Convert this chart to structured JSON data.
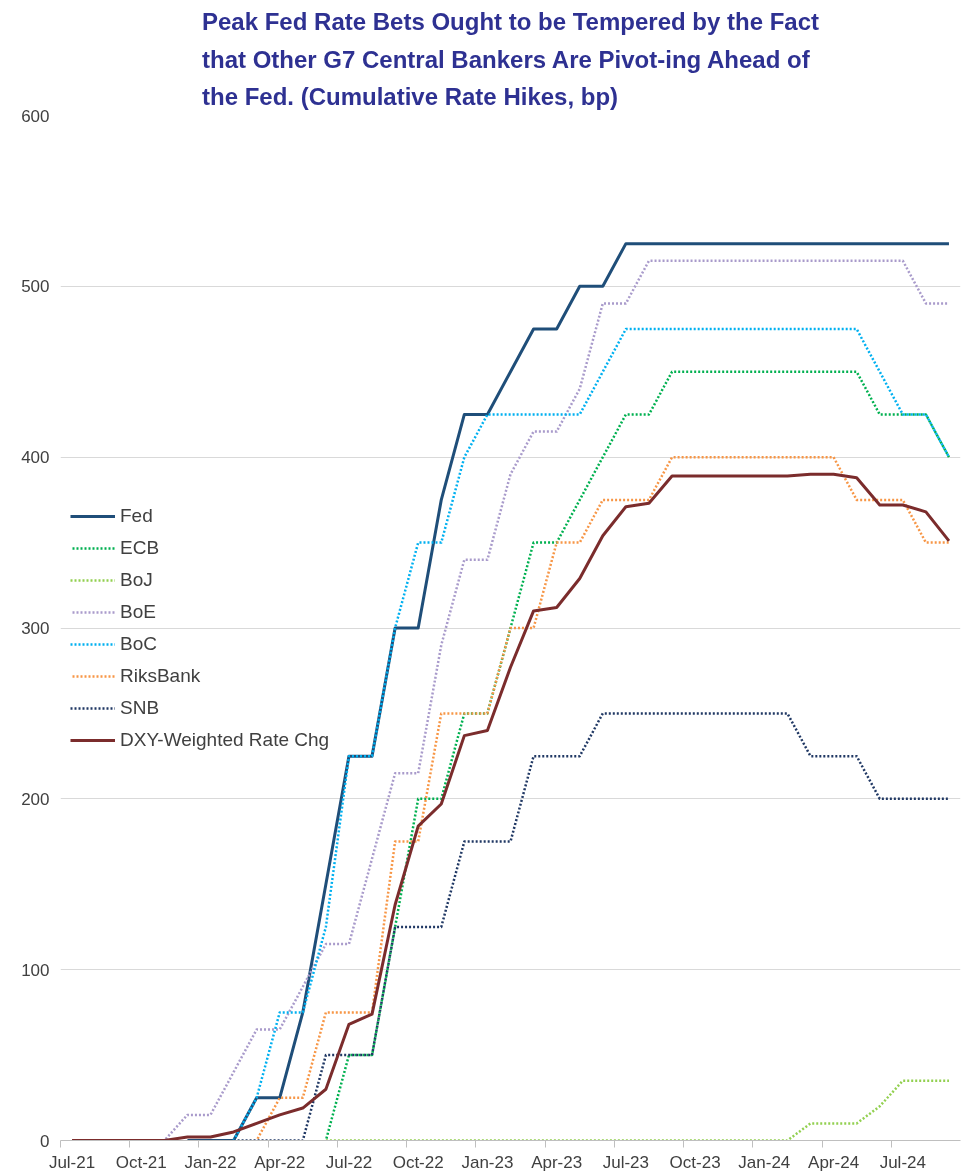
{
  "chart_data": {
    "type": "line",
    "title": "Peak Fed Rate Bets Ought to be Tempered by the Fact that Other G7 Central Bankers Are Pivot-ing Ahead of the Fed. (Cumulative Rate Hikes, bp)",
    "categories": [
      "Jul-21",
      null,
      null,
      "Oct-21",
      null,
      null,
      "Jan-22",
      null,
      null,
      "Apr-22",
      null,
      null,
      "Jul-22",
      null,
      null,
      "Oct-22",
      null,
      null,
      "Jan-23",
      null,
      null,
      "Apr-23",
      null,
      null,
      "Jul-23",
      null,
      null,
      "Oct-23",
      null,
      null,
      "Jan-24",
      null,
      null,
      "Apr-24",
      null,
      null,
      "Jul-24",
      null,
      null
    ],
    "ylim": [
      0,
      600
    ],
    "yticks": [
      0,
      100,
      200,
      300,
      400,
      500,
      600
    ],
    "grid": "y",
    "legend": "left",
    "series": [
      {
        "name": "Fed",
        "color": "#1f4e79",
        "line_style": "solid",
        "values": [
          null,
          null,
          null,
          null,
          null,
          0,
          0,
          0,
          25,
          25,
          75,
          150,
          225,
          225,
          300,
          300,
          375,
          425,
          425,
          450,
          475,
          475,
          500,
          500,
          525,
          525,
          525,
          525,
          525,
          525,
          525,
          525,
          525,
          525,
          525,
          525,
          525,
          525,
          525
        ]
      },
      {
        "name": "ECB",
        "color": "#00b050",
        "line_style": "dotted",
        "values": [
          null,
          null,
          null,
          null,
          null,
          null,
          null,
          null,
          null,
          null,
          null,
          0,
          50,
          50,
          125,
          200,
          200,
          250,
          250,
          300,
          350,
          350,
          375,
          400,
          425,
          425,
          450,
          450,
          450,
          450,
          450,
          450,
          450,
          450,
          450,
          425,
          425,
          425,
          400
        ]
      },
      {
        "name": "BoJ",
        "color": "#92d050",
        "line_style": "dotted",
        "values": [
          null,
          null,
          null,
          null,
          null,
          null,
          null,
          null,
          null,
          null,
          null,
          0,
          0,
          0,
          0,
          0,
          0,
          0,
          0,
          0,
          0,
          0,
          0,
          0,
          0,
          0,
          0,
          0,
          0,
          0,
          0,
          0,
          10,
          10,
          10,
          20,
          35,
          35,
          35
        ]
      },
      {
        "name": "BoE",
        "color": "#a99bcb",
        "line_style": "dotted",
        "values": [
          null,
          null,
          null,
          null,
          0,
          15,
          15,
          40,
          65,
          65,
          90,
          115,
          115,
          165,
          215,
          215,
          290,
          340,
          340,
          390,
          415,
          415,
          440,
          490,
          490,
          515,
          515,
          515,
          515,
          515,
          515,
          515,
          515,
          515,
          515,
          515,
          515,
          490,
          490
        ]
      },
      {
        "name": "BoC",
        "color": "#00b0f0",
        "line_style": "dotted",
        "values": [
          null,
          null,
          null,
          null,
          null,
          null,
          null,
          0,
          25,
          75,
          75,
          125,
          225,
          225,
          300,
          350,
          350,
          400,
          425,
          425,
          425,
          425,
          425,
          450,
          475,
          475,
          475,
          475,
          475,
          475,
          475,
          475,
          475,
          475,
          475,
          450,
          425,
          425,
          400
        ]
      },
      {
        "name": "RiksBank",
        "color": "#f79646",
        "line_style": "dotted",
        "values": [
          null,
          null,
          null,
          null,
          null,
          null,
          null,
          null,
          0,
          25,
          25,
          75,
          75,
          75,
          175,
          175,
          250,
          250,
          250,
          300,
          300,
          350,
          350,
          375,
          375,
          375,
          400,
          400,
          400,
          400,
          400,
          400,
          400,
          400,
          375,
          375,
          375,
          350,
          350
        ]
      },
      {
        "name": "SNB",
        "color": "#203864",
        "line_style": "dotted",
        "values": [
          null,
          null,
          null,
          null,
          null,
          null,
          null,
          0,
          0,
          0,
          0,
          50,
          50,
          50,
          125,
          125,
          125,
          175,
          175,
          175,
          225,
          225,
          225,
          250,
          250,
          250,
          250,
          250,
          250,
          250,
          250,
          250,
          225,
          225,
          225,
          200,
          200,
          200,
          200
        ]
      },
      {
        "name": "DXY-Weighted Rate Chg",
        "color": "#7b2c2c",
        "line_style": "solid",
        "values": [
          0,
          0,
          0,
          0,
          0,
          2,
          2,
          5,
          10,
          15,
          19,
          30,
          68,
          74,
          138,
          184,
          197,
          237,
          240,
          277,
          310,
          312,
          329,
          354,
          371,
          373,
          389,
          389,
          389,
          389,
          389,
          389,
          390,
          390,
          388,
          372,
          372,
          368,
          351
        ]
      }
    ]
  }
}
